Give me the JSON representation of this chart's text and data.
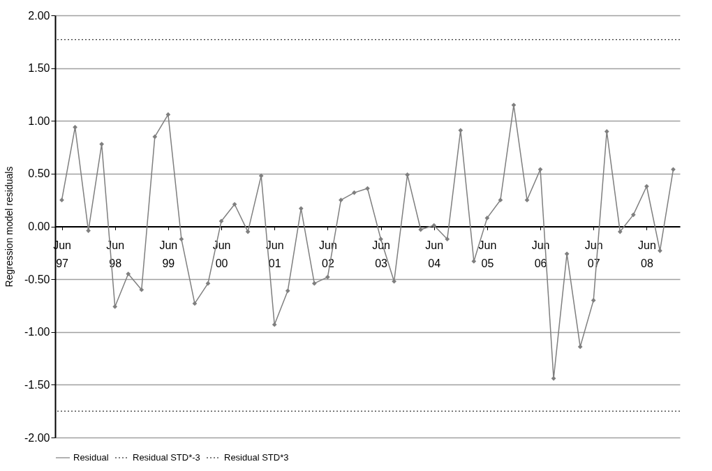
{
  "chart_data": {
    "type": "line",
    "ylabel": "Regression model residuals",
    "categories": [
      "Jun 97",
      null,
      null,
      null,
      "Jun 98",
      null,
      null,
      null,
      "Jun 99",
      null,
      null,
      null,
      "Jun 00",
      null,
      null,
      null,
      "Jun 01",
      null,
      null,
      null,
      "Jun 02",
      null,
      null,
      null,
      "Jun 03",
      null,
      null,
      null,
      "Jun 04",
      null,
      null,
      null,
      "Jun 05",
      null,
      null,
      null,
      "Jun 06",
      null,
      null,
      null,
      "Jun 07",
      null,
      null,
      null,
      "Jun 08",
      null,
      null
    ],
    "series": [
      {
        "name": "Residual",
        "color": "#7f7f7f",
        "values": [
          0.25,
          0.94,
          -0.04,
          0.78,
          -0.76,
          -0.45,
          -0.6,
          0.85,
          1.06,
          -0.12,
          -0.73,
          -0.54,
          0.05,
          0.21,
          -0.05,
          0.48,
          -0.93,
          -0.61,
          0.17,
          -0.54,
          -0.48,
          0.25,
          0.32,
          0.36,
          -0.12,
          -0.52,
          0.49,
          -0.03,
          0.01,
          -0.12,
          0.91,
          -0.33,
          0.08,
          0.25,
          1.15,
          0.25,
          0.54,
          -1.44,
          -0.26,
          -1.14,
          -0.7,
          0.9,
          -0.05,
          0.11,
          0.38,
          -0.23,
          0.54
        ]
      }
    ],
    "ylim": [
      -2,
      2
    ],
    "yticks": [
      {
        "value": -2,
        "label": "-2.00"
      },
      {
        "value": -1.5,
        "label": "-1.50"
      },
      {
        "value": -1,
        "label": "-1.00"
      },
      {
        "value": -0.5,
        "label": "-0.50"
      },
      {
        "value": 0,
        "label": "0.00"
      },
      {
        "value": 0.5,
        "label": "0.50"
      },
      {
        "value": 1,
        "label": "1.00"
      },
      {
        "value": 1.5,
        "label": "1.50"
      },
      {
        "value": 2,
        "label": "2.00"
      }
    ],
    "ref_lines": [
      {
        "axis": "y",
        "value": -1.75,
        "label": "Residual STD*-3",
        "color": "#000000",
        "line_style": "dotted"
      },
      {
        "axis": "y",
        "value": 1.77,
        "label": "Residual STD*3",
        "color": "#000000",
        "line_style": "dotted"
      }
    ],
    "grid": "y",
    "legend": "bottom",
    "marker": "diamond",
    "line_style": "solid"
  }
}
